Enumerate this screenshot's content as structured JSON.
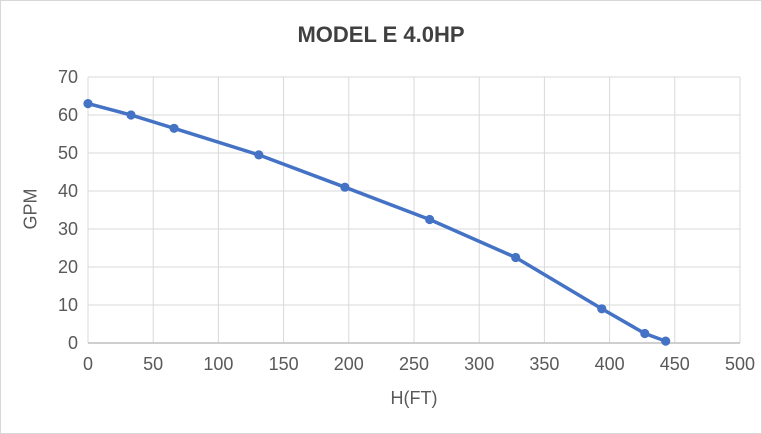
{
  "frame": {
    "background": "#FFFFFF",
    "border_color": "#D7D7D7"
  },
  "chart_data": {
    "type": "line",
    "title": "MODEL E 4.0HP",
    "xlabel": "H(FT)",
    "ylabel": "GPM",
    "x": [
      0,
      33,
      66,
      131,
      197,
      262,
      328,
      394,
      427,
      443
    ],
    "y": [
      63,
      60,
      56.5,
      49.5,
      41,
      32.5,
      22.5,
      9,
      2.5,
      0.5
    ],
    "xlim": [
      0,
      500
    ],
    "ylim": [
      0,
      70
    ],
    "x_ticks": [
      0,
      50,
      100,
      150,
      200,
      250,
      300,
      350,
      400,
      450,
      500
    ],
    "y_ticks": [
      0,
      10,
      20,
      30,
      40,
      50,
      60,
      70
    ],
    "grid": true,
    "legend": "none",
    "line_color": "#4472C4",
    "marker": "circle",
    "marker_color": "#4472C4",
    "gridline_color": "#D9D9D9",
    "axis_line_color": "#BFBFBF",
    "tick_label_color": "#595959",
    "title_color": "#404040"
  }
}
